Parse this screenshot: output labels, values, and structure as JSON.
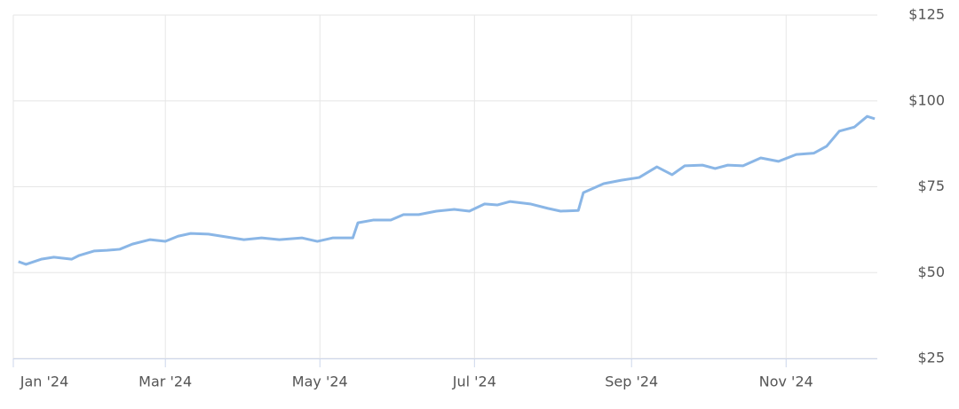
{
  "chart_data": {
    "type": "line",
    "x": [
      2,
      5,
      11,
      16,
      23,
      26,
      32,
      37,
      42,
      47,
      54,
      60,
      65,
      70,
      77,
      84,
      91,
      98,
      105,
      114,
      120,
      126,
      134,
      136,
      142,
      149,
      154,
      160,
      167,
      174,
      180,
      186,
      191,
      196,
      204,
      211,
      216,
      223,
      225,
      233,
      240,
      247,
      254,
      260,
      265,
      272,
      277,
      282,
      288,
      295,
      302,
      309,
      316,
      321,
      326,
      332,
      337,
      340
    ],
    "series": [
      {
        "color": "#8ab6e6",
        "values": [
          53.2,
          52.4,
          53.9,
          54.5,
          53.9,
          55,
          56.3,
          56.5,
          56.8,
          58.3,
          59.6,
          59.1,
          60.6,
          61.4,
          61.2,
          60.4,
          59.6,
          60.1,
          59.6,
          60.1,
          59.1,
          60.1,
          60.1,
          64.5,
          65.3,
          65.3,
          66.9,
          66.9,
          67.9,
          68.4,
          67.9,
          70,
          69.7,
          70.7,
          70,
          68.7,
          67.9,
          68.1,
          73.3,
          75.9,
          76.9,
          77.7,
          80.8,
          78.5,
          81.1,
          81.3,
          80.3,
          81.3,
          81.1,
          83.4,
          82.4,
          84.4,
          84.8,
          86.8,
          91.2,
          92.4,
          95.5,
          94.8
        ]
      }
    ],
    "xlim": [
      0,
      341
    ],
    "xticks": [
      {
        "value": 0,
        "label": "Jan '24"
      },
      {
        "value": 60,
        "label": "Mar '24"
      },
      {
        "value": 121,
        "label": "May '24"
      },
      {
        "value": 182,
        "label": "Jul '24"
      },
      {
        "value": 244,
        "label": "Sep '24"
      },
      {
        "value": 305,
        "label": "Nov '24"
      }
    ],
    "ylim": [
      25,
      125
    ],
    "yticks": [
      {
        "value": 25,
        "label": "$25"
      },
      {
        "value": 50,
        "label": "$50"
      },
      {
        "value": 75,
        "label": "$75"
      },
      {
        "value": 100,
        "label": "$100"
      },
      {
        "value": 125,
        "label": "$125"
      }
    ],
    "grid": true
  }
}
